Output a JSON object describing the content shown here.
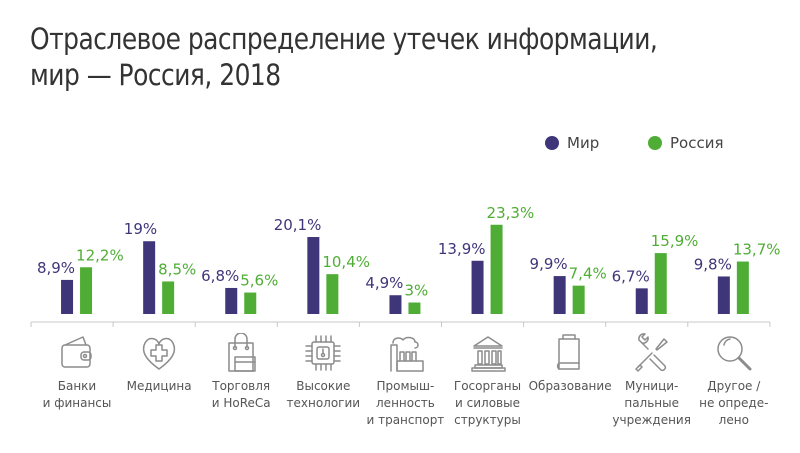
{
  "title_lines": [
    "Отраслевое распределение утечек информации,",
    "мир — Россия, 2018"
  ],
  "legend": [
    {
      "name": "Мир",
      "color": "#3f3679"
    },
    {
      "name": "Россия",
      "color": "#4fad35"
    }
  ],
  "chart_data": {
    "type": "bar",
    "title": "Отраслевое распределение утечек информации, мир — Россия, 2018",
    "xlabel": "",
    "ylabel": "",
    "ylim": [
      0,
      25
    ],
    "grid": false,
    "legend_position": "top-right",
    "categories": [
      "Банки и финансы",
      "Медицина",
      "Торговля и HoReCa",
      "Высокие технологии",
      "Промышленность и транспорт",
      "Госорганы и силовые структуры",
      "Образование",
      "Муниципальные учреждения",
      "Другое / не определено"
    ],
    "series": [
      {
        "name": "Мир",
        "color": "#3f3679",
        "values": [
          8.9,
          19,
          6.8,
          20.1,
          4.9,
          13.9,
          9.9,
          6.7,
          9.8
        ],
        "labels": [
          "8,9%",
          "19%",
          "6,8%",
          "20,1%",
          "4,9%",
          "13,9%",
          "9,9%",
          "6,7%",
          "9,8%"
        ]
      },
      {
        "name": "Россия",
        "color": "#4fad35",
        "values": [
          12.2,
          8.5,
          5.6,
          10.4,
          3,
          23.3,
          7.4,
          15.9,
          13.7
        ],
        "labels": [
          "12,2%",
          "8,5%",
          "5,6%",
          "10,4%",
          "3%",
          "23,3%",
          "7,4%",
          "15,9%",
          "13,7%"
        ]
      }
    ]
  },
  "category_labels": [
    {
      "text": "Банки\nи финансы",
      "icon": "wallet-icon"
    },
    {
      "text": "Медицина",
      "icon": "heart-cross-icon"
    },
    {
      "text": "Торговля\nи HoReCa",
      "icon": "shopping-bag-icon"
    },
    {
      "text": "Высокие\nтехнологии",
      "icon": "chip-icon"
    },
    {
      "text": "Промыш-\nленность\nи транспорт",
      "icon": "factory-icon"
    },
    {
      "text": "Госорганы\nи силовые\nструктуры",
      "icon": "government-building-icon"
    },
    {
      "text": "Образование",
      "icon": "book-icon"
    },
    {
      "text": "Муници-\nпальные\nучреждения",
      "icon": "tools-icon"
    },
    {
      "text": "Другое /\nне опреде-\nлено",
      "icon": "magnifier-icon"
    }
  ]
}
